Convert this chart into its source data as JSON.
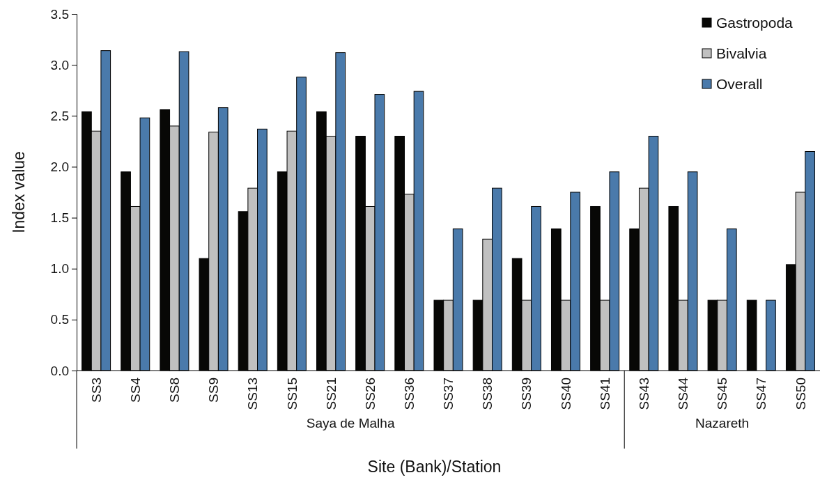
{
  "chart_data": {
    "type": "bar",
    "xlabel": "Site (Bank)/Station",
    "ylabel": "Index value",
    "categories": [
      "SS3",
      "SS4",
      "SS8",
      "SS9",
      "SS13",
      "SS15",
      "SS21",
      "SS26",
      "SS36",
      "SS37",
      "SS38",
      "SS39",
      "SS40",
      "SS41",
      "SS43",
      "SS44",
      "SS45",
      "SS47",
      "SS50"
    ],
    "series": [
      {
        "name": "Gastropoda",
        "color": "#080806",
        "values": [
          2.54,
          1.95,
          2.56,
          1.1,
          1.56,
          1.95,
          2.54,
          2.3,
          2.3,
          0.69,
          0.69,
          1.1,
          1.39,
          1.61,
          1.39,
          1.61,
          0.69,
          0.69,
          1.04
        ]
      },
      {
        "name": "Bivalvia",
        "color": "#c0c0c0",
        "values": [
          2.35,
          1.61,
          2.4,
          2.34,
          1.79,
          2.35,
          2.3,
          1.61,
          1.73,
          0.69,
          1.29,
          0.69,
          0.69,
          0.69,
          1.79,
          0.69,
          0.69,
          null,
          1.75
        ]
      },
      {
        "name": "Overall",
        "color": "#4a7aab",
        "values": [
          3.14,
          2.48,
          3.13,
          2.58,
          2.37,
          2.88,
          3.12,
          2.71,
          2.74,
          1.39,
          1.79,
          1.61,
          1.75,
          1.95,
          2.3,
          1.95,
          1.39,
          0.69,
          2.15
        ]
      }
    ],
    "ylim": [
      0,
      3.5
    ],
    "yticks": [
      {
        "value": 0,
        "label": "0.0"
      },
      {
        "value": 0.5,
        "label": "0.5"
      },
      {
        "value": 1,
        "label": "1.0"
      },
      {
        "value": 1.5,
        "label": "1.5"
      },
      {
        "value": 2,
        "label": "2.0"
      },
      {
        "value": 2.5,
        "label": "2.5"
      },
      {
        "value": 3,
        "label": "3.0"
      },
      {
        "value": 3.5,
        "label": "3.5"
      }
    ],
    "legend": "top right",
    "annotations": [
      "Saya de Malha",
      "Nazareth"
    ]
  }
}
